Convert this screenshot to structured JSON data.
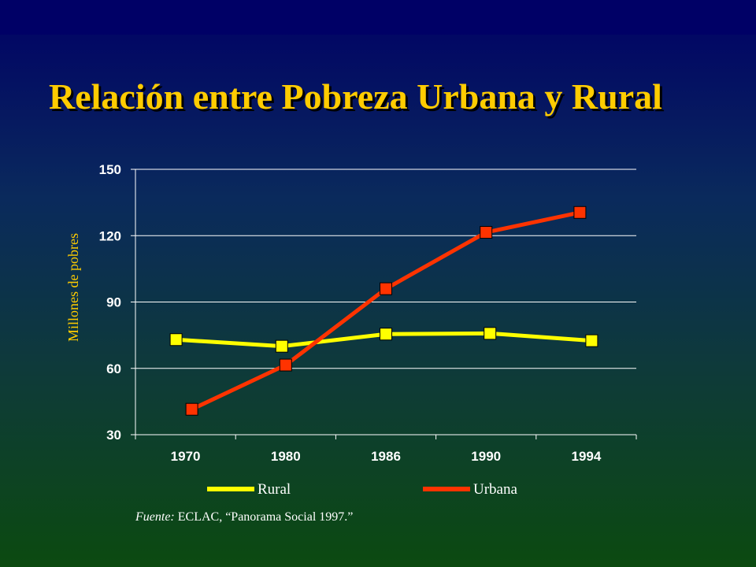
{
  "slide": {
    "title": "Relación entre Pobreza Urbana y Rural",
    "source_prefix": "Fuente:",
    "source_text": " ECLAC, “Panorama Social 1997.”"
  },
  "colors": {
    "rural": "#ffff00",
    "urbana": "#ff3300",
    "title": "#ffcc00",
    "axis_label": "#ffcc00",
    "text": "#ffffff"
  },
  "chart_data": {
    "type": "line",
    "title": "",
    "xlabel": "",
    "ylabel": "Millones de pobres",
    "categories": [
      "1970",
      "1980",
      "1986",
      "1990",
      "1994"
    ],
    "ylim": [
      30,
      150
    ],
    "yticks": [
      30,
      60,
      90,
      120,
      150
    ],
    "grid": true,
    "legend_position": "bottom",
    "series": [
      {
        "name": "Rural",
        "values": [
          73,
          70,
          75.5,
          75.8,
          72.5
        ]
      },
      {
        "name": "Urbana",
        "values": [
          41.5,
          61.5,
          96,
          121.5,
          130.5
        ]
      }
    ]
  }
}
